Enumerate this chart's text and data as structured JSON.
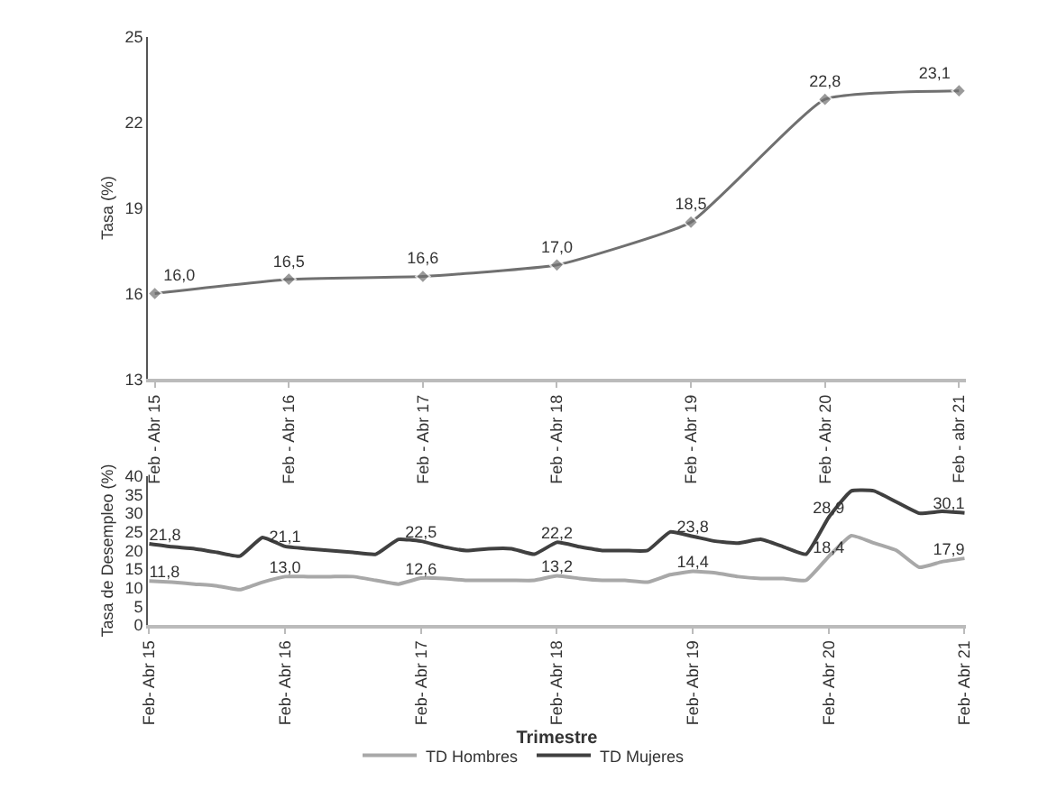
{
  "chart_data": [
    {
      "type": "line",
      "ylabel": "Tasa (%)",
      "categories": [
        "Feb - Abr 15",
        "Feb - Abr 16",
        "Feb - Abr 17",
        "Feb - Abr 18",
        "Feb - Abr 19",
        "Feb - Abr 20",
        "Feb - abr 21"
      ],
      "ylim": [
        13,
        25
      ],
      "yticks": [
        13,
        16,
        19,
        22,
        25
      ],
      "marker": "diamond",
      "grid": false,
      "legend": false,
      "series": [
        {
          "color": "#707070",
          "values": [
            16.0,
            16.5,
            16.6,
            17.0,
            18.5,
            22.8,
            23.1
          ],
          "value_labels": [
            "16,0",
            "16,5",
            "16,6",
            "17,0",
            "18,5",
            "22,8",
            "23,1"
          ]
        }
      ]
    },
    {
      "type": "line",
      "ylabel": "Tasa de Desempleo (%)",
      "xlabel": "Trimestre",
      "categories": [
        "Feb- Abr 15",
        null,
        null,
        null,
        null,
        null,
        "Feb- Abr 16",
        null,
        null,
        null,
        null,
        null,
        "Feb- Abr 17",
        null,
        null,
        null,
        null,
        null,
        "Feb- Abr 18",
        null,
        null,
        null,
        null,
        null,
        "Feb- Abr 19",
        null,
        null,
        null,
        null,
        null,
        "Feb- Abr 20",
        null,
        null,
        null,
        null,
        null,
        "Feb- Abr 21"
      ],
      "ylim": [
        0,
        40
      ],
      "yticks": [
        0,
        5,
        10,
        15,
        20,
        25,
        30,
        35,
        40
      ],
      "grid": false,
      "legend": "bottom",
      "series": [
        {
          "name": "TD Hombres",
          "color": "#a8a8a8",
          "values": [
            11.8,
            11.5,
            11,
            10.5,
            9.5,
            11.5,
            13.0,
            13,
            13,
            13,
            12,
            11,
            12.6,
            12.5,
            12,
            12,
            12,
            12,
            13.2,
            12.5,
            12,
            12,
            11.5,
            13.5,
            14.4,
            14,
            13,
            12.5,
            12.5,
            12,
            18.4,
            24,
            22,
            20,
            15.5,
            17,
            17.9
          ],
          "value_labels": [
            "11,8",
            null,
            null,
            null,
            null,
            null,
            "13,0",
            null,
            null,
            null,
            null,
            null,
            "12,6",
            null,
            null,
            null,
            null,
            null,
            "13,2",
            null,
            null,
            null,
            null,
            null,
            "14,4",
            null,
            null,
            null,
            null,
            null,
            "18,4",
            null,
            null,
            null,
            null,
            null,
            "17,9"
          ]
        },
        {
          "name": "TD Mujeres",
          "color": "#404040",
          "values": [
            21.8,
            21,
            20.5,
            19.5,
            18.5,
            23.5,
            21.1,
            20.5,
            20,
            19.5,
            19,
            23,
            22.5,
            21,
            20,
            20.5,
            20.5,
            19,
            22.2,
            21,
            20,
            20,
            20,
            25,
            23.8,
            22.5,
            22,
            23,
            21,
            19,
            28.9,
            36,
            36,
            33,
            30,
            30.5,
            30.1
          ],
          "value_labels": [
            "21,8",
            null,
            null,
            null,
            null,
            null,
            "21,1",
            null,
            null,
            null,
            null,
            null,
            "22,5",
            null,
            null,
            null,
            null,
            null,
            "22,2",
            null,
            null,
            null,
            null,
            null,
            "23,8",
            null,
            null,
            null,
            null,
            null,
            "28,9",
            null,
            null,
            null,
            null,
            null,
            "30,1"
          ]
        }
      ]
    }
  ]
}
